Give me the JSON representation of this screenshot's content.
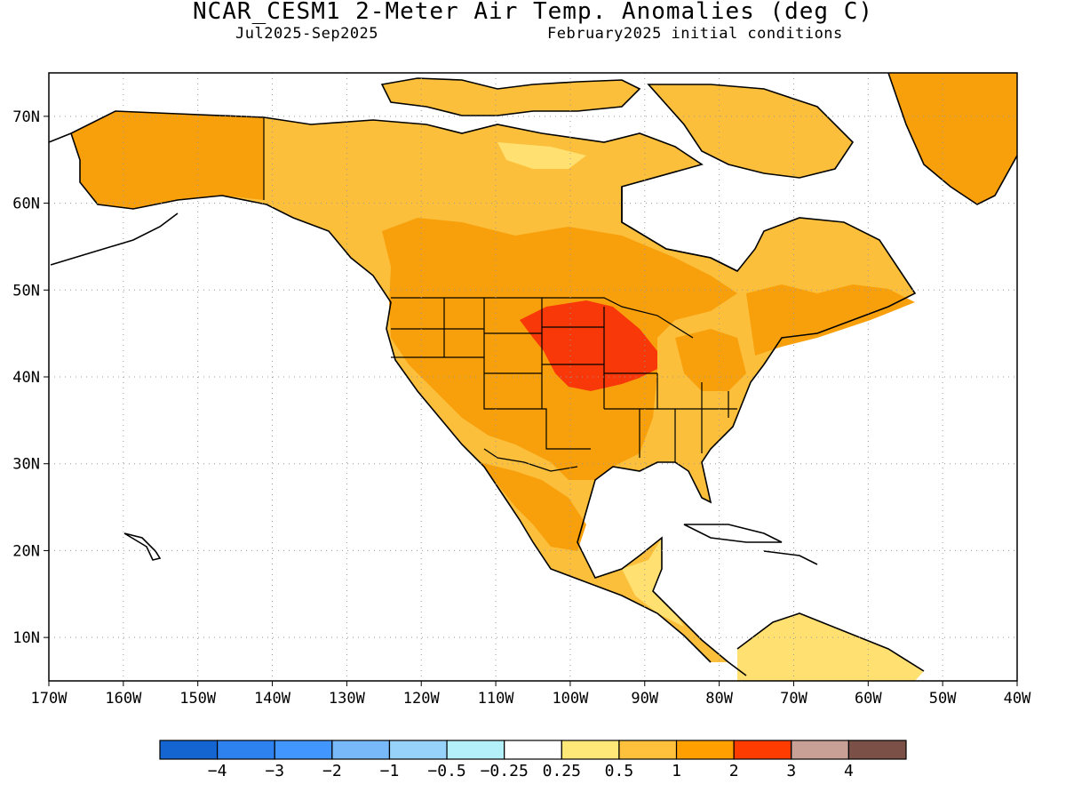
{
  "title": "NCAR_CESM1 2-Meter Air Temp. Anomalies (deg C)",
  "subtitle_left": "Jul2025-Sep2025",
  "subtitle_right": "February2025 initial conditions",
  "colors": {
    "land_outline": "#000000",
    "ocean": "#ffffff",
    "anom_0_25_to_0_5": "#ffe070",
    "anom_0_5_to_1": "#fbbf3c",
    "anom_1_to_2": "#f8a00c",
    "anom_2_to_3": "#f83808"
  },
  "chart_data": {
    "type": "heatmap",
    "map_extent": {
      "lon": [
        -170,
        -40
      ],
      "lat": [
        5,
        75
      ]
    },
    "x_ticks": [
      "170W",
      "160W",
      "150W",
      "140W",
      "130W",
      "120W",
      "110W",
      "100W",
      "90W",
      "80W",
      "70W",
      "60W",
      "50W",
      "40W"
    ],
    "y_ticks": [
      "10N",
      "20N",
      "30N",
      "40N",
      "50N",
      "60N",
      "70N"
    ],
    "grid": "dotted",
    "colorbar": {
      "labels": [
        "-4",
        "-3",
        "-2",
        "-1",
        "-0.5",
        "-0.25",
        "0.25",
        "0.5",
        "1",
        "2",
        "3",
        "4"
      ],
      "colors": [
        "#1464d2",
        "#2d82f0",
        "#4196ff",
        "#78b9fa",
        "#96d2fa",
        "#b4f0fa",
        "#ffffff",
        "#ffe878",
        "#ffc03c",
        "#ffa000",
        "#ff3c00",
        "#c8a096",
        "#7b5147"
      ]
    }
  }
}
